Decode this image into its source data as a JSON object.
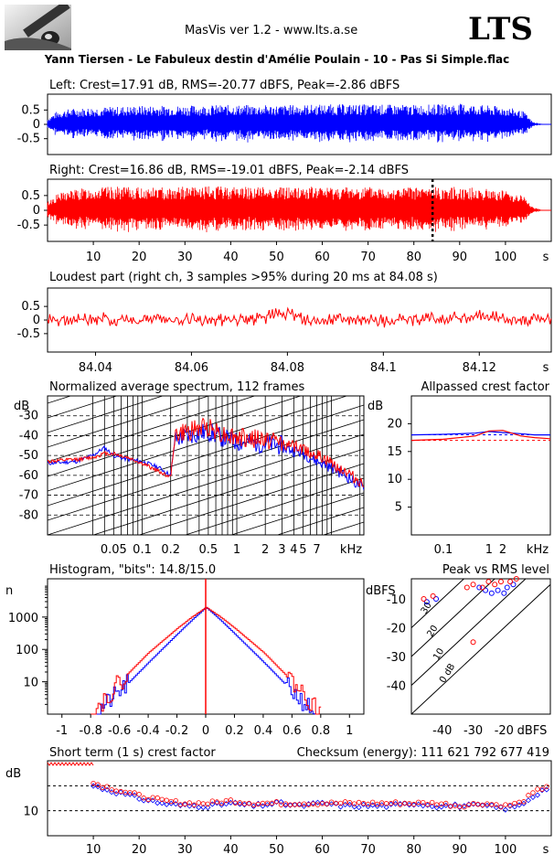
{
  "header": {
    "app_title": "MasVis ver 1.2 - www.lts.a.se",
    "brand": "LTS",
    "filename": "Yann Tiersen - Le Fabuleux destin d'Amélie Poulain - 10 - Pas Si Simple.flac"
  },
  "colors": {
    "left": "#0000ff",
    "right": "#ff0000",
    "axes": "#000000"
  },
  "chart_data": [
    {
      "id": "left_waveform",
      "type": "area",
      "title": "Left: Crest=17.91 dB, RMS=-20.77 dBFS, Peak=-2.86 dBFS",
      "ylim": [
        -1,
        1
      ],
      "yticks": [
        "0.5",
        "0",
        "-0.5"
      ],
      "xlim": [
        0,
        110
      ],
      "series": [
        {
          "name": "Left",
          "color": "#0000ff",
          "x": [
            0,
            2,
            5,
            10,
            15,
            20,
            30,
            40,
            50,
            60,
            70,
            80,
            90,
            100,
            104,
            106,
            108,
            110
          ],
          "values": [
            0.2,
            0.45,
            0.55,
            0.6,
            0.62,
            0.65,
            0.66,
            0.68,
            0.67,
            0.7,
            0.7,
            0.68,
            0.72,
            0.62,
            0.45,
            0.08,
            0.02,
            0.0
          ]
        }
      ]
    },
    {
      "id": "right_waveform",
      "type": "area",
      "title": "Right: Crest=16.86 dB, RMS=-19.01 dBFS, Peak=-2.14 dBFS",
      "ylim": [
        -1,
        1
      ],
      "yticks": [
        "0.5",
        "0",
        "-0.5"
      ],
      "xlim": [
        0,
        110
      ],
      "marker_x": 84.08,
      "xticks": [
        "10",
        "20",
        "30",
        "40",
        "50",
        "60",
        "70",
        "80",
        "90",
        "100"
      ],
      "xunit": "s",
      "series": [
        {
          "name": "Right",
          "color": "#ff0000",
          "x": [
            0,
            2,
            5,
            10,
            15,
            20,
            30,
            40,
            50,
            60,
            70,
            80,
            90,
            100,
            104,
            106,
            108,
            110
          ],
          "values": [
            0.3,
            0.55,
            0.7,
            0.78,
            0.8,
            0.78,
            0.8,
            0.82,
            0.8,
            0.8,
            0.8,
            0.78,
            0.8,
            0.68,
            0.5,
            0.1,
            0.02,
            0.0
          ]
        }
      ]
    },
    {
      "id": "loudest_part",
      "type": "line",
      "title": "Loudest part (right ch, 3 samples >95% during 20 ms at 84.08 s)",
      "ylim": [
        -1,
        1
      ],
      "yticks": [
        "0.5",
        "0",
        "-0.5"
      ],
      "xlim": [
        84.03,
        84.135
      ],
      "xticks": [
        "84.04",
        "84.06",
        "84.08",
        "84.1",
        "84.12"
      ],
      "xunit": "s",
      "series": [
        {
          "name": "Right",
          "color": "#ff0000",
          "x": [
            84.03,
            84.04,
            84.05,
            84.06,
            84.07,
            84.075,
            84.08,
            84.085,
            84.09,
            84.1,
            84.11,
            84.12,
            84.13,
            84.135
          ],
          "values": [
            0.05,
            0.1,
            0.0,
            0.1,
            -0.1,
            0.3,
            0.9,
            -0.4,
            0.3,
            -0.1,
            0.15,
            0.4,
            0.05,
            0.2
          ]
        }
      ]
    },
    {
      "id": "avg_spectrum",
      "type": "line",
      "title": "Normalized average spectrum, 112 frames",
      "ylabel": "dB",
      "ylim": [
        -90,
        -20
      ],
      "yticks": [
        "-30",
        "-40",
        "-50",
        "-60",
        "-70",
        "-80"
      ],
      "xscale": "log",
      "xlim": [
        0.01,
        22
      ],
      "xticks": [
        "0.05",
        "0.1",
        "0.2",
        "0.5",
        "1",
        "2",
        "3",
        "4",
        "5",
        "7"
      ],
      "xunit": "kHz",
      "grid": true,
      "series": [
        {
          "name": "Left",
          "color": "#0000ff",
          "x": [
            0.01,
            0.02,
            0.03,
            0.04,
            0.05,
            0.07,
            0.1,
            0.15,
            0.2,
            0.22,
            0.3,
            0.5,
            0.7,
            1,
            2,
            3,
            5,
            7,
            10,
            15,
            22
          ],
          "values": [
            -54,
            -53,
            -50,
            -46,
            -50,
            -52,
            -53,
            -56,
            -60,
            -44,
            -42,
            -40,
            -43,
            -45,
            -46,
            -47,
            -50,
            -54,
            -57,
            -62,
            -68
          ]
        },
        {
          "name": "Right",
          "color": "#ff0000",
          "x": [
            0.01,
            0.02,
            0.03,
            0.04,
            0.05,
            0.07,
            0.1,
            0.15,
            0.2,
            0.22,
            0.3,
            0.5,
            0.7,
            1,
            2,
            3,
            5,
            7,
            10,
            15,
            22
          ],
          "values": [
            -53,
            -52,
            -51,
            -49,
            -49,
            -51,
            -54,
            -58,
            -61,
            -42,
            -40,
            -37,
            -41,
            -43,
            -44,
            -45,
            -48,
            -51,
            -55,
            -60,
            -66
          ]
        }
      ]
    },
    {
      "id": "allpassed_crest",
      "type": "line",
      "title": "Allpassed crest factor",
      "ylabel": "dB",
      "ylim": [
        0,
        25
      ],
      "yticks": [
        "20",
        "15",
        "10",
        "5"
      ],
      "xscale": "log",
      "xlim": [
        0.02,
        22
      ],
      "xticks": [
        "0.1",
        "1",
        "2"
      ],
      "xunit": "kHz",
      "series": [
        {
          "name": "Left",
          "color": "#0000ff",
          "x": [
            0.02,
            0.1,
            0.5,
            1,
            2,
            5,
            10,
            22
          ],
          "values": [
            18.0,
            18.1,
            18.3,
            18.6,
            18.4,
            18.2,
            18.0,
            18.0
          ]
        },
        {
          "name": "Right",
          "color": "#ff0000",
          "x": [
            0.02,
            0.1,
            0.5,
            1,
            2,
            5,
            10,
            22
          ],
          "values": [
            17.0,
            17.2,
            17.8,
            18.7,
            18.8,
            17.8,
            17.5,
            17.3
          ]
        }
      ]
    },
    {
      "id": "histogram",
      "type": "line",
      "title": "Histogram, \"bits\": 14.8/15.0",
      "ylabel": "n",
      "yscale": "log",
      "yticks": [
        "1000",
        "100",
        "10"
      ],
      "xlim": [
        -1.1,
        1.1
      ],
      "xticks": [
        "-1",
        "-0.8",
        "-0.6",
        "-0.4",
        "-0.2",
        "0",
        "0.2",
        "0.4",
        "0.6",
        "0.8",
        "1"
      ],
      "series": [
        {
          "name": "Left",
          "color": "#0000ff",
          "x": [
            -0.78,
            -0.6,
            -0.4,
            -0.2,
            -0.1,
            0,
            0.1,
            0.2,
            0.4,
            0.6,
            0.76
          ],
          "values": [
            1,
            5,
            40,
            300,
            800,
            2000,
            800,
            300,
            40,
            5,
            1
          ]
        },
        {
          "name": "Right",
          "color": "#ff0000",
          "x": [
            -0.8,
            -0.6,
            -0.4,
            -0.2,
            -0.1,
            0,
            0.1,
            0.2,
            0.4,
            0.6,
            0.8
          ],
          "values": [
            1,
            10,
            80,
            450,
            1000,
            2000,
            1000,
            450,
            80,
            10,
            1
          ]
        }
      ]
    },
    {
      "id": "peak_vs_rms",
      "type": "scatter",
      "title": "Peak vs RMS level",
      "ylabel": "dBFS",
      "xlabel": "dBFS",
      "xlim": [
        -50,
        -5
      ],
      "ylim": [
        -50,
        -3
      ],
      "yticks": [
        "-10",
        "-20",
        "-30",
        "-40"
      ],
      "xticks": [
        "-40",
        "-30",
        "-20"
      ],
      "diagonal_labels": [
        "30",
        "20",
        "10",
        "0 dB"
      ],
      "series": [
        {
          "name": "Left",
          "color": "#0000ff",
          "x": [
            -45,
            -42,
            -28,
            -26,
            -24,
            -22,
            -20,
            -19,
            -17
          ],
          "y": [
            -11,
            -10,
            -6,
            -7,
            -8,
            -7,
            -8,
            -6,
            -5
          ]
        },
        {
          "name": "Right",
          "color": "#ff0000",
          "x": [
            -46,
            -43,
            -32,
            -30,
            -27,
            -25,
            -23,
            -21,
            -18,
            -16,
            -30
          ],
          "y": [
            -10,
            -9,
            -6,
            -5,
            -6,
            -4,
            -5,
            -4,
            -4,
            -3,
            -25
          ]
        }
      ]
    },
    {
      "id": "short_term_crest",
      "type": "scatter",
      "title": "Short term (1 s) crest factor",
      "annotation": "Checksum (energy):  111 621 792 677 419",
      "ylabel": "dB",
      "ylim": [
        0,
        30
      ],
      "yticks": [
        "10"
      ],
      "xlim": [
        0,
        110
      ],
      "xticks": [
        "10",
        "20",
        "30",
        "40",
        "50",
        "60",
        "70",
        "80",
        "90",
        "100"
      ],
      "xunit": "s",
      "series": [
        {
          "name": "Left",
          "color": "#0000ff",
          "x": [
            10,
            12,
            14,
            16,
            18,
            20,
            25,
            30,
            35,
            40,
            45,
            50,
            55,
            60,
            65,
            70,
            75,
            80,
            85,
            90,
            95,
            100,
            103,
            107,
            109
          ],
          "values": [
            20,
            19,
            18,
            17,
            16,
            15,
            13,
            12,
            12,
            13,
            12,
            13,
            12,
            13,
            12,
            12,
            12,
            13,
            12,
            12,
            12,
            11,
            12,
            17,
            19
          ]
        },
        {
          "name": "Right",
          "color": "#ff0000",
          "x": [
            10,
            12,
            14,
            16,
            18,
            20,
            25,
            30,
            35,
            40,
            45,
            50,
            55,
            60,
            65,
            70,
            75,
            80,
            85,
            90,
            95,
            100,
            103,
            107,
            109
          ],
          "values": [
            21,
            20,
            19,
            18,
            17,
            16,
            14,
            13,
            13,
            14,
            13,
            13,
            13,
            13,
            13,
            13,
            13,
            13,
            13,
            12,
            13,
            12,
            13,
            18,
            20
          ]
        }
      ]
    }
  ]
}
